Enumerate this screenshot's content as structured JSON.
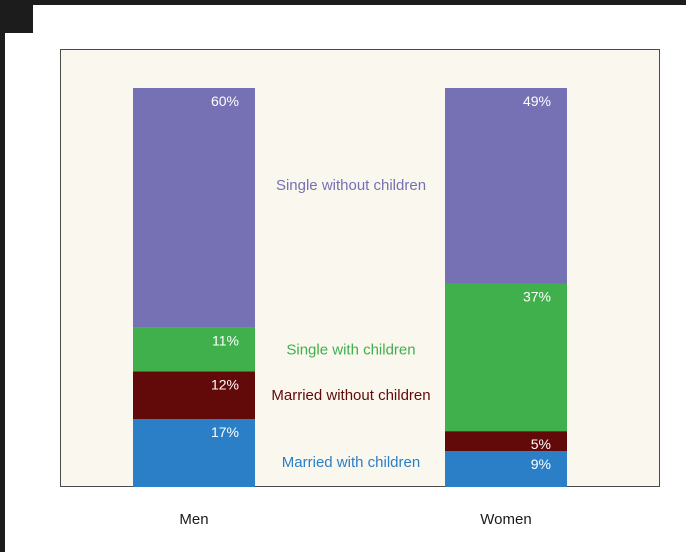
{
  "chart_data": {
    "type": "bar",
    "stacked": true,
    "categories": [
      "Men",
      "Women"
    ],
    "series": [
      {
        "name": "Married with children",
        "color": "#2b7fc6",
        "values": [
          17,
          9
        ],
        "labels": [
          "17%",
          "9%"
        ]
      },
      {
        "name": "Married without children",
        "color": "#620909",
        "values": [
          12,
          5
        ],
        "labels": [
          "12%",
          "5%"
        ]
      },
      {
        "name": "Single with children",
        "color": "#40b04c",
        "values": [
          11,
          37
        ],
        "labels": [
          "11%",
          "37%"
        ]
      },
      {
        "name": "Single without children",
        "color": "#7670b5",
        "values": [
          60,
          49
        ],
        "labels": [
          "60%",
          "49%"
        ]
      }
    ],
    "series_label_colors": [
      "#2b7fc6",
      "#620909",
      "#40b04c",
      "#7670b5"
    ],
    "ylim": [
      0,
      100
    ],
    "grid": false,
    "legend": "inline between bars"
  }
}
